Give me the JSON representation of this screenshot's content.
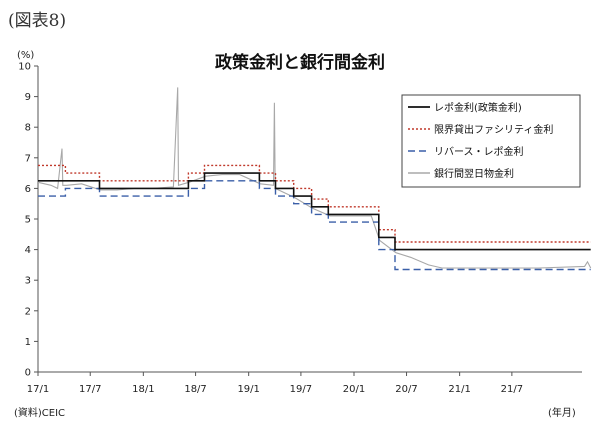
{
  "figure_label": "(図表8)",
  "source_note": "(資料)CEIC",
  "chart_data": {
    "type": "line",
    "title": "政策金利と銀行間金利",
    "ylabel": "(%)",
    "xlabel": "(年月)",
    "ylim": [
      0,
      10
    ],
    "xlim": [
      "2017-01",
      "2022-03"
    ],
    "yticks": [
      "0",
      "1",
      "2",
      "3",
      "4",
      "5",
      "6",
      "7",
      "8",
      "9",
      "10"
    ],
    "xticks": [
      {
        "label": "17/1",
        "date": "2017-01"
      },
      {
        "label": "17/7",
        "date": "2017-07"
      },
      {
        "label": "18/1",
        "date": "2018-01"
      },
      {
        "label": "18/7",
        "date": "2018-07"
      },
      {
        "label": "19/1",
        "date": "2019-01"
      },
      {
        "label": "19/7",
        "date": "2019-07"
      },
      {
        "label": "20/1",
        "date": "2020-01"
      },
      {
        "label": "20/7",
        "date": "2020-07"
      },
      {
        "label": "21/1",
        "date": "2021-01"
      },
      {
        "label": "21/7",
        "date": "2021-07"
      }
    ],
    "grid": false,
    "legend_position": "top-right",
    "series": [
      {
        "name": "レポ金利(政策金利)",
        "color": "#111111",
        "style": "solid",
        "step": true,
        "points": [
          [
            "2017-01-01",
            6.25
          ],
          [
            "2017-08-02",
            6.0
          ],
          [
            "2018-06-06",
            6.25
          ],
          [
            "2018-08-01",
            6.5
          ],
          [
            "2019-02-07",
            6.25
          ],
          [
            "2019-04-04",
            6.0
          ],
          [
            "2019-06-06",
            5.75
          ],
          [
            "2019-08-07",
            5.4
          ],
          [
            "2019-10-04",
            5.15
          ],
          [
            "2020-03-27",
            4.4
          ],
          [
            "2020-05-22",
            4.0
          ],
          [
            "2022-03-31",
            4.0
          ]
        ]
      },
      {
        "name": "限界貸出ファシリティ金利",
        "color": "#c0392b",
        "style": "dotted",
        "step": true,
        "points": [
          [
            "2017-01-01",
            6.75
          ],
          [
            "2017-04-06",
            6.5
          ],
          [
            "2017-08-02",
            6.25
          ],
          [
            "2018-02-13",
            6.25
          ],
          [
            "2018-06-06",
            6.5
          ],
          [
            "2018-08-01",
            6.75
          ],
          [
            "2019-02-07",
            6.5
          ],
          [
            "2019-04-04",
            6.25
          ],
          [
            "2019-06-06",
            6.0
          ],
          [
            "2019-08-07",
            5.65
          ],
          [
            "2019-10-04",
            5.4
          ],
          [
            "2020-03-27",
            4.65
          ],
          [
            "2020-05-22",
            4.25
          ],
          [
            "2022-03-31",
            4.25
          ]
        ]
      },
      {
        "name": "リバース・レポ金利",
        "color": "#3a5fa8",
        "style": "dashed",
        "step": true,
        "points": [
          [
            "2017-01-01",
            5.75
          ],
          [
            "2017-04-06",
            6.0
          ],
          [
            "2017-08-02",
            5.75
          ],
          [
            "2018-06-06",
            6.0
          ],
          [
            "2018-08-01",
            6.25
          ],
          [
            "2019-02-07",
            6.0
          ],
          [
            "2019-04-04",
            5.75
          ],
          [
            "2019-06-06",
            5.5
          ],
          [
            "2019-08-07",
            5.15
          ],
          [
            "2019-10-04",
            4.9
          ],
          [
            "2020-03-27",
            4.0
          ],
          [
            "2020-05-22",
            3.35
          ],
          [
            "2022-03-31",
            3.35
          ]
        ]
      },
      {
        "name": "銀行間翌日物金利",
        "color": "#a8a8a8",
        "style": "solid",
        "step": false,
        "points": [
          [
            "2017-01-01",
            6.2
          ],
          [
            "2017-02-15",
            6.1
          ],
          [
            "2017-03-10",
            6.0
          ],
          [
            "2017-03-25",
            7.3
          ],
          [
            "2017-03-28",
            6.1
          ],
          [
            "2017-04-10",
            6.1
          ],
          [
            "2017-06-01",
            6.15
          ],
          [
            "2017-08-05",
            5.95
          ],
          [
            "2017-10-01",
            5.95
          ],
          [
            "2017-12-01",
            6.0
          ],
          [
            "2018-02-01",
            6.0
          ],
          [
            "2018-04-15",
            6.05
          ],
          [
            "2018-04-30",
            9.3
          ],
          [
            "2018-05-03",
            6.1
          ],
          [
            "2018-06-08",
            6.2
          ],
          [
            "2018-08-05",
            6.4
          ],
          [
            "2018-10-01",
            6.45
          ],
          [
            "2018-12-01",
            6.45
          ],
          [
            "2019-02-10",
            6.15
          ],
          [
            "2019-03-28",
            6.1
          ],
          [
            "2019-03-31",
            8.8
          ],
          [
            "2019-04-03",
            6.0
          ],
          [
            "2019-06-10",
            5.7
          ],
          [
            "2019-08-10",
            5.35
          ],
          [
            "2019-10-10",
            5.1
          ],
          [
            "2019-12-20",
            5.1
          ],
          [
            "2020-03-01",
            5.1
          ],
          [
            "2020-03-30",
            4.3
          ],
          [
            "2020-05-25",
            3.9
          ],
          [
            "2020-07-15",
            3.75
          ],
          [
            "2020-09-15",
            3.5
          ],
          [
            "2020-11-01",
            3.4
          ],
          [
            "2021-02-01",
            3.4
          ],
          [
            "2021-06-01",
            3.4
          ],
          [
            "2021-10-01",
            3.4
          ],
          [
            "2022-03-10",
            3.45
          ],
          [
            "2022-03-20",
            3.6
          ],
          [
            "2022-03-31",
            3.4
          ]
        ]
      }
    ]
  }
}
